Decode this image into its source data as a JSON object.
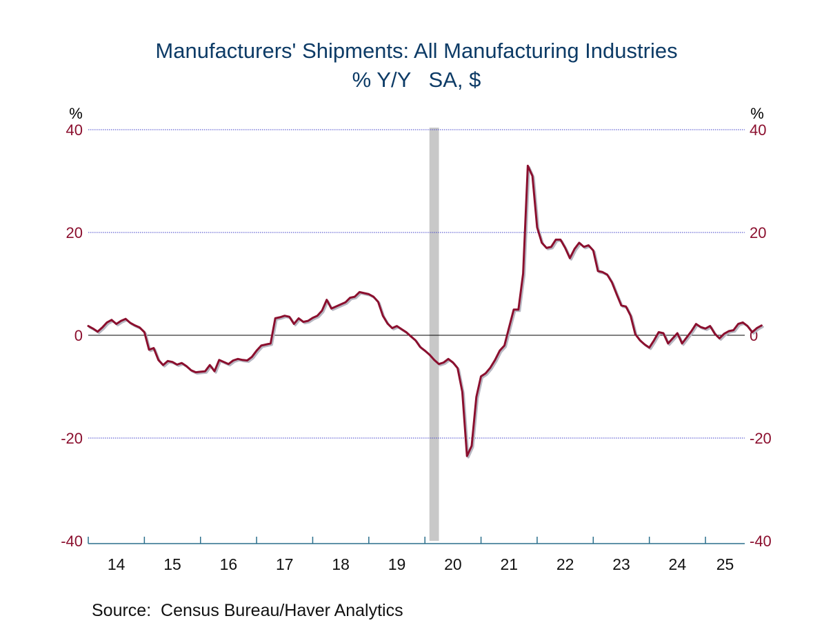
{
  "chart_data": {
    "type": "line",
    "title": "Manufacturers' Shipments: All Manufacturing Industries",
    "subtitle": "% Y/Y   SA, $",
    "unit_left": "%",
    "unit_right": "%",
    "ylim": [
      -40,
      40
    ],
    "yticks": [
      40,
      20,
      0,
      -20,
      -40
    ],
    "xlim": [
      2014.0,
      2025.7
    ],
    "xtick_labels": [
      "14",
      "15",
      "16",
      "17",
      "18",
      "19",
      "20",
      "21",
      "22",
      "23",
      "24",
      "25"
    ],
    "grid": true,
    "source": "Source:  Census Bureau/Haver Analytics",
    "recession_shading": [
      [
        2020.08,
        2020.25
      ]
    ],
    "colors": {
      "line": "#8b0f2e",
      "shadow": "#b7b7c2",
      "grid": "#3c3cc8",
      "axis": "#2a6f8c",
      "recession": "#c8c8c8",
      "title": "#0d3b66",
      "ticks": "#8b0f2e"
    },
    "series": [
      {
        "x_start": 2014.0,
        "x_step": 0.08333,
        "values": [
          1.8,
          1.3,
          0.7,
          1.5,
          2.5,
          3.0,
          2.2,
          2.8,
          3.2,
          2.4,
          1.9,
          1.5,
          0.6,
          -2.8,
          -2.5,
          -4.8,
          -5.8,
          -5.0,
          -5.2,
          -5.7,
          -5.4,
          -6.0,
          -6.8,
          -7.2,
          -7.1,
          -7.0,
          -5.8,
          -7.0,
          -4.8,
          -5.2,
          -5.6,
          -4.9,
          -4.6,
          -4.8,
          -4.9,
          -4.2,
          -3.0,
          -2.0,
          -1.8,
          -1.6,
          3.3,
          3.5,
          3.8,
          3.6,
          2.2,
          3.3,
          2.6,
          2.8,
          3.4,
          3.8,
          4.8,
          6.9,
          5.2,
          5.6,
          6.0,
          6.4,
          7.3,
          7.5,
          8.4,
          8.2,
          8.0,
          7.5,
          6.5,
          3.8,
          2.3,
          1.4,
          1.8,
          1.2,
          0.6,
          -0.2,
          -1.0,
          -2.3,
          -3.0,
          -3.8,
          -4.8,
          -5.6,
          -5.3,
          -4.6,
          -5.3,
          -6.4,
          -11.0,
          -23.5,
          -21.5,
          -12.0,
          -8.0,
          -7.4,
          -6.3,
          -4.8,
          -3.0,
          -2.0,
          1.5,
          5.0,
          5.0,
          12.0,
          33.0,
          31.0,
          21.0,
          18.0,
          17.0,
          17.2,
          18.6,
          18.6,
          17.0,
          15.0,
          16.8,
          18.0,
          17.2,
          17.5,
          16.5,
          12.5,
          12.3,
          11.8,
          10.3,
          8.0,
          5.8,
          5.6,
          3.8,
          0.2,
          -1.0,
          -1.8,
          -2.4,
          -1.0,
          0.6,
          0.4,
          -1.6,
          -0.6,
          0.4,
          -1.6,
          -0.4,
          0.8,
          2.2,
          1.6,
          1.3,
          1.8,
          0.3,
          -0.6,
          0.3,
          0.8,
          1.0,
          2.2,
          2.5,
          1.8,
          0.6,
          1.4,
          1.9
        ]
      }
    ]
  }
}
